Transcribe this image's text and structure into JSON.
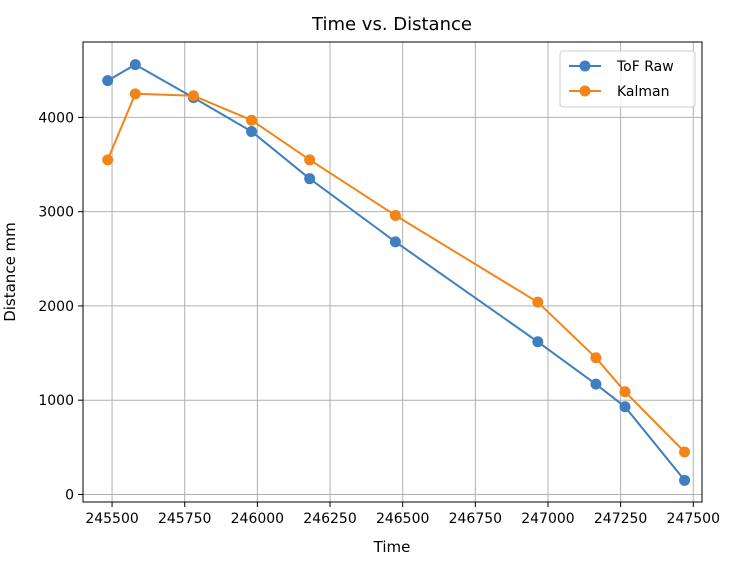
{
  "chart_data": {
    "type": "line",
    "title": "Time vs. Distance",
    "xlabel": "Time",
    "ylabel": "Distance mm",
    "xlim": [
      245400,
      247530
    ],
    "ylim": [
      -80,
      4800
    ],
    "xticks": [
      245500,
      245750,
      246000,
      246250,
      246500,
      246750,
      247000,
      247250,
      247500
    ],
    "xtick_labels": [
      "245500",
      "245750",
      "246000",
      "246250",
      "246500",
      "246750",
      "247000",
      "247250",
      "247500"
    ],
    "yticks": [
      0,
      1000,
      2000,
      3000,
      4000
    ],
    "ytick_labels": [
      "0",
      "1000",
      "2000",
      "3000",
      "4000"
    ],
    "grid": true,
    "legend_position": "top-right",
    "series": [
      {
        "name": "ToF Raw",
        "color": "#3f7fbf",
        "x": [
          245485,
          245580,
          245780,
          245980,
          246180,
          246475,
          246965,
          247165,
          247265,
          247470
        ],
        "y": [
          4390,
          4560,
          4210,
          3850,
          3350,
          2680,
          1620,
          1170,
          930,
          150
        ]
      },
      {
        "name": "Kalman",
        "color": "#f28518",
        "x": [
          245485,
          245580,
          245780,
          245980,
          246180,
          246475,
          246965,
          247165,
          247265,
          247470
        ],
        "y": [
          3550,
          4250,
          4230,
          3970,
          3550,
          2960,
          2040,
          1450,
          1090,
          450
        ]
      }
    ]
  }
}
